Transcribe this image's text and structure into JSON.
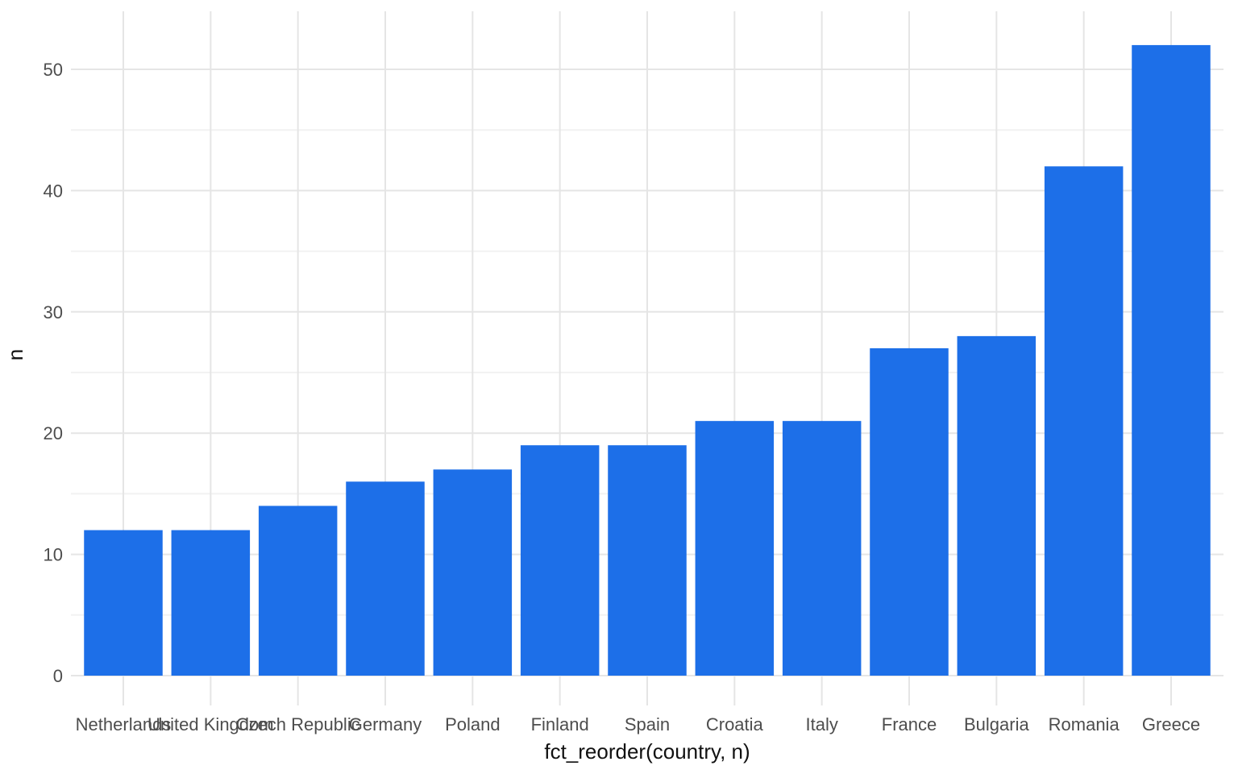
{
  "figure": {
    "background_color": "#FFFFFF"
  },
  "chart_data": {
    "type": "bar",
    "title": "",
    "xlabel": "fct_reorder(country, n)",
    "ylabel": "n",
    "categories": [
      "Netherlands",
      "United Kingdom",
      "Czech Republic",
      "Germany",
      "Poland",
      "Finland",
      "Spain",
      "Croatia",
      "Italy",
      "France",
      "Bulgaria",
      "Romania",
      "Greece"
    ],
    "values": [
      12,
      12,
      14,
      16,
      17,
      19,
      19,
      21,
      21,
      27,
      28,
      42,
      52
    ],
    "ytick_labels": [
      "0",
      "10",
      "20",
      "30",
      "40",
      "50"
    ],
    "yticks": [
      0,
      10,
      20,
      30,
      40,
      50
    ],
    "y_minor_ticks": [
      5,
      15,
      25,
      35,
      45
    ],
    "ylim": [
      0,
      54.8
    ],
    "bar_relative_width": 0.9,
    "grid": "horizontal-major-minor-and-vertical-major",
    "legend_position": "none",
    "colors": {
      "bar_fill": "#1D6FE8",
      "grid_major": "#E5E5E5",
      "grid_minor": "#F2F2F2",
      "tick_label": "#4D4D4D",
      "axis_title": "#111111",
      "background": "#FFFFFF"
    }
  }
}
